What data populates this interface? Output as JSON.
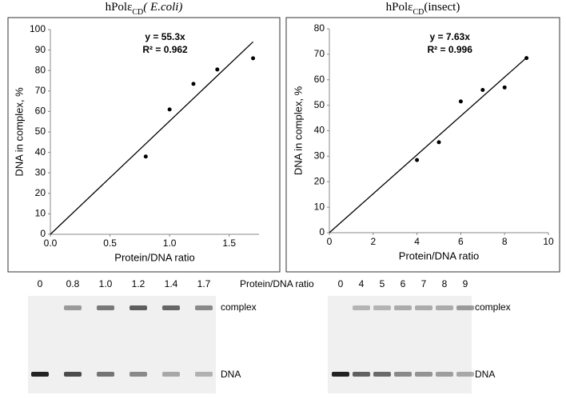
{
  "chart_data": [
    {
      "type": "scatter",
      "title": {
        "main": "hPolε",
        "sub": "CD",
        "tail": "( E.coli)"
      },
      "x_label": "Protein/DNA ratio",
      "y_label": "DNA in complex, %",
      "x": [
        0.8,
        1.0,
        1.2,
        1.4,
        1.7
      ],
      "values": [
        38,
        61,
        73.5,
        80.5,
        86
      ],
      "color": "#000000",
      "xlim": [
        0,
        1.75
      ],
      "ylim": [
        0,
        100
      ],
      "xticks": [
        {
          "value": 0,
          "label": "0.0"
        },
        {
          "value": 0.5,
          "label": "0.5"
        },
        {
          "value": 1,
          "label": "1.0"
        },
        {
          "value": 1.5,
          "label": "1.5"
        }
      ],
      "yticks": [
        0,
        10,
        20,
        30,
        40,
        50,
        60,
        70,
        80,
        90,
        100
      ],
      "trendline": {
        "slope": 55.3,
        "equation": "y = 55.3x",
        "r2": "R² = 0.962"
      }
    },
    {
      "type": "scatter",
      "title": {
        "main": "hPolε",
        "sub": "CD",
        "tail": "(insect)"
      },
      "x_label": "Protein/DNA ratio",
      "y_label": "DNA in complex, %",
      "x": [
        4,
        5,
        6,
        7,
        8,
        9
      ],
      "values": [
        28.5,
        35.5,
        51.5,
        56,
        57,
        68.5
      ],
      "color": "#000000",
      "xlim": [
        0,
        10
      ],
      "ylim": [
        0,
        80
      ],
      "xticks": [
        0,
        2,
        4,
        6,
        8,
        10
      ],
      "yticks": [
        0,
        10,
        20,
        30,
        40,
        50,
        60,
        70,
        80
      ],
      "trendline": {
        "slope": 7.63,
        "equation": "y = 7.63x",
        "r2": "R² = 0.996"
      }
    }
  ],
  "gels": {
    "ratio_label": "Protein/DNA ratio",
    "left": {
      "lanes": [
        "0",
        "0.8",
        "1.0",
        "1.2",
        "1.4",
        "1.7"
      ],
      "complex": "complex",
      "dna": "DNA"
    },
    "right": {
      "lanes": [
        "0",
        "4",
        "5",
        "6",
        "7",
        "8",
        "9"
      ],
      "complex": "complex",
      "dna": "DNA"
    }
  }
}
